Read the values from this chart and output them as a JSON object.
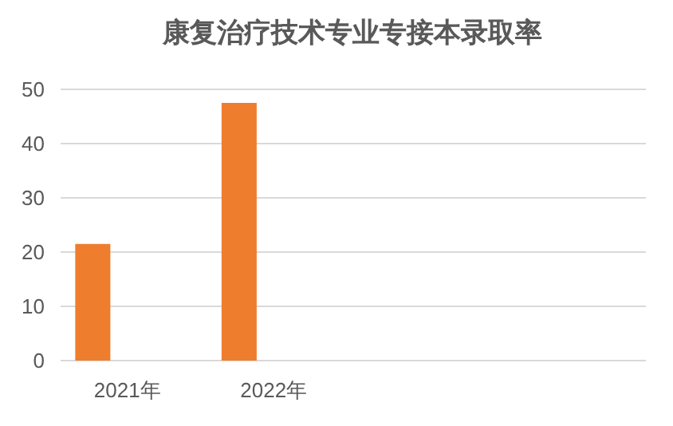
{
  "chart_data": {
    "type": "bar",
    "title": "康复治疗技术专业专接本录取率",
    "categories": [
      "2021年",
      "2022年",
      null,
      null
    ],
    "values": [
      21.5,
      47.5,
      null,
      null
    ],
    "color": "#ef7d2e",
    "ylim": [
      0,
      50
    ],
    "yticks": [
      0,
      10,
      20,
      30,
      40,
      50
    ],
    "grid": "y"
  }
}
